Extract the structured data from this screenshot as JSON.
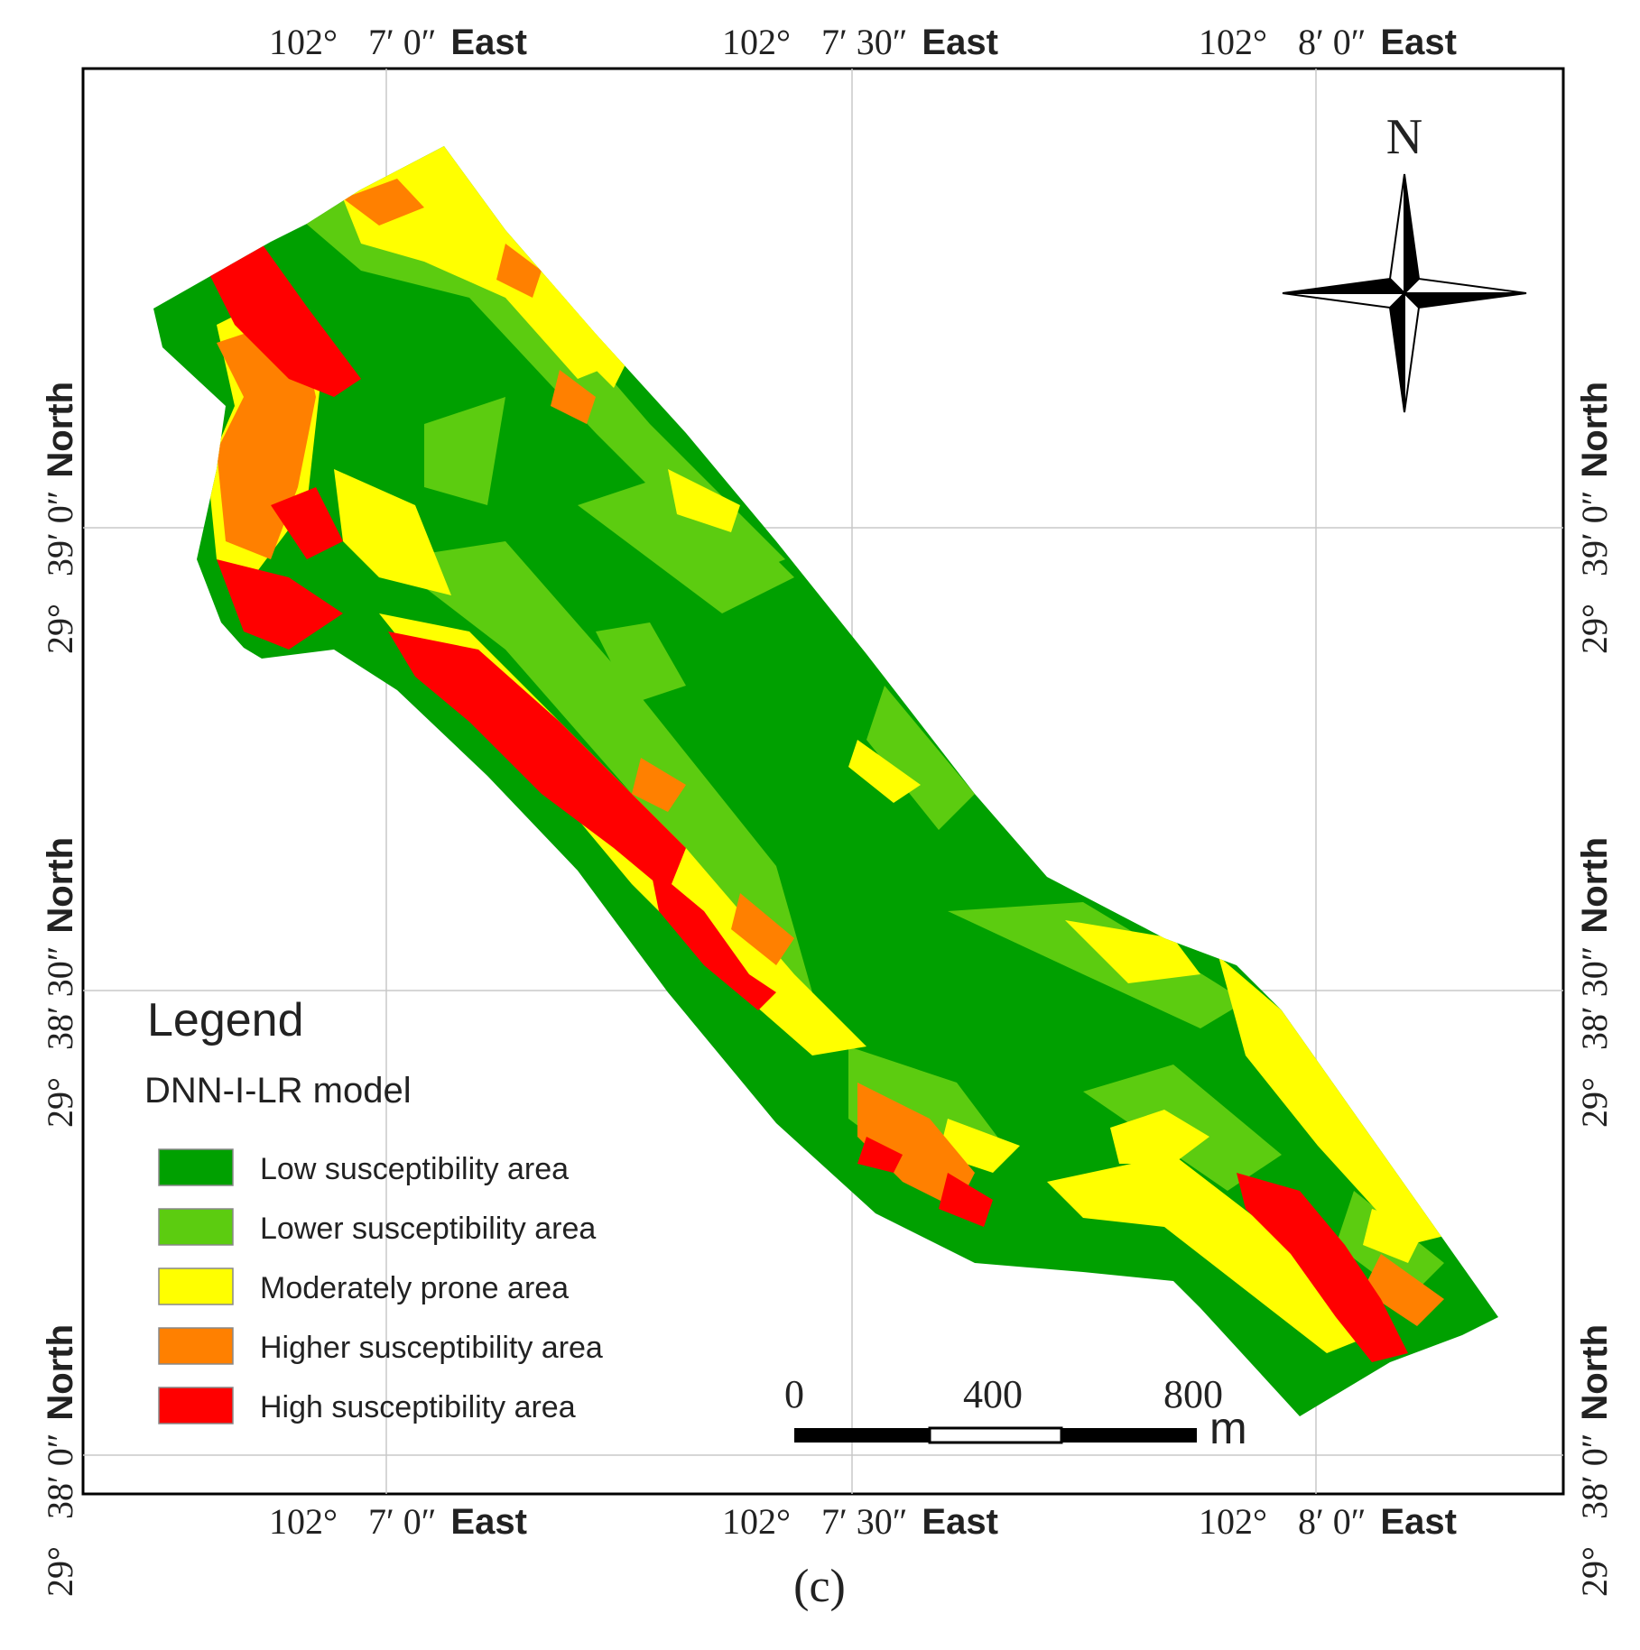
{
  "figure": {
    "panel_label": "(c)"
  },
  "graticule": {
    "longitudes": [
      {
        "degrees": "102°",
        "minsec": "7′ 0″",
        "dir": "East"
      },
      {
        "degrees": "102°",
        "minsec": "7′ 30″",
        "dir": "East"
      },
      {
        "degrees": "102°",
        "minsec": "8′ 0″",
        "dir": "East"
      }
    ],
    "latitudes": [
      {
        "degrees": "29°",
        "minsec": "39′ 0″",
        "dir": "North"
      },
      {
        "degrees": "29°",
        "minsec": "38′ 30″",
        "dir": "North"
      },
      {
        "degrees": "29°",
        "minsec": "38′ 0″",
        "dir": "North"
      }
    ]
  },
  "north_arrow": {
    "label": "N",
    "icon": "compass-rose-icon"
  },
  "legend": {
    "title": "Legend",
    "subtitle": "DNN-I-LR model",
    "items": [
      {
        "label": "Low susceptibility area",
        "color": "#00a000"
      },
      {
        "label": "Lower susceptibility area",
        "color": "#5ccc10"
      },
      {
        "label": "Moderately prone area",
        "color": "#ffff00"
      },
      {
        "label": "Higher susceptibility area",
        "color": "#ff8000"
      },
      {
        "label": "High susceptibility area",
        "color": "#ff0000"
      }
    ]
  },
  "scale_bar": {
    "ticks": [
      "0",
      "400",
      "800"
    ],
    "unit": "m"
  },
  "colors": {
    "frame": "#000000",
    "gridline": "#cccccc",
    "label": "#222222"
  }
}
